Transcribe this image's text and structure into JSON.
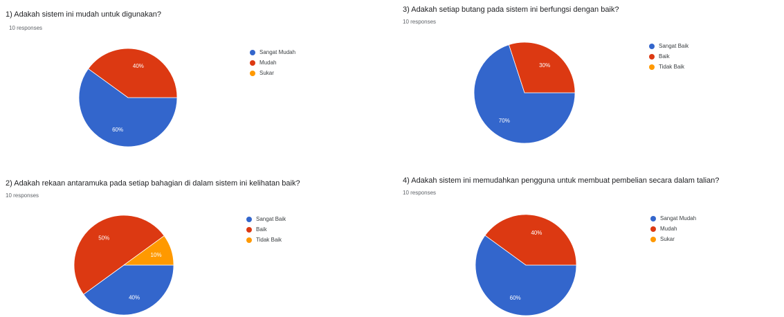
{
  "colors": {
    "blue": "#3366cc",
    "red": "#dc3912",
    "orange": "#ff9900"
  },
  "chart_data": [
    {
      "type": "pie",
      "title": "1) Adakah sistem ini mudah untuk digunakan?",
      "subtitle": "10 responses",
      "labels": [
        "Sangat Mudah",
        "Mudah",
        "Sukar"
      ],
      "values": [
        60,
        40,
        0
      ],
      "slice_labels": [
        "60%",
        "40%",
        ""
      ],
      "colors": [
        "#3366cc",
        "#dc3912",
        "#ff9900"
      ],
      "legend_position": "right"
    },
    {
      "type": "pie",
      "title": "3) Adakah setiap butang pada sistem ini berfungsi dengan baik?",
      "subtitle": "10 responses",
      "labels": [
        "Sangat Baik",
        "Baik",
        "Tidak Baik"
      ],
      "values": [
        70,
        30,
        0
      ],
      "slice_labels": [
        "70%",
        "30%",
        ""
      ],
      "colors": [
        "#3366cc",
        "#dc3912",
        "#ff9900"
      ],
      "legend_position": "right"
    },
    {
      "type": "pie",
      "title": "2) Adakah rekaan antaramuka pada setiap bahagian di dalam sistem ini kelihatan baik?",
      "subtitle": "10 responses",
      "labels": [
        "Sangat Baik",
        "Baik",
        "Tidak Baik"
      ],
      "values": [
        40,
        50,
        10
      ],
      "slice_labels": [
        "40%",
        "50%",
        "10%"
      ],
      "colors": [
        "#3366cc",
        "#dc3912",
        "#ff9900"
      ],
      "legend_position": "right"
    },
    {
      "type": "pie",
      "title": "4) Adakah sistem ini memudahkan pengguna untuk membuat pembelian secara dalam talian?",
      "subtitle": "10 responses",
      "labels": [
        "Sangat Mudah",
        "Mudah",
        "Sukar"
      ],
      "values": [
        60,
        40,
        0
      ],
      "slice_labels": [
        "60%",
        "40%",
        ""
      ],
      "colors": [
        "#3366cc",
        "#dc3912",
        "#ff9900"
      ],
      "legend_position": "right"
    }
  ]
}
